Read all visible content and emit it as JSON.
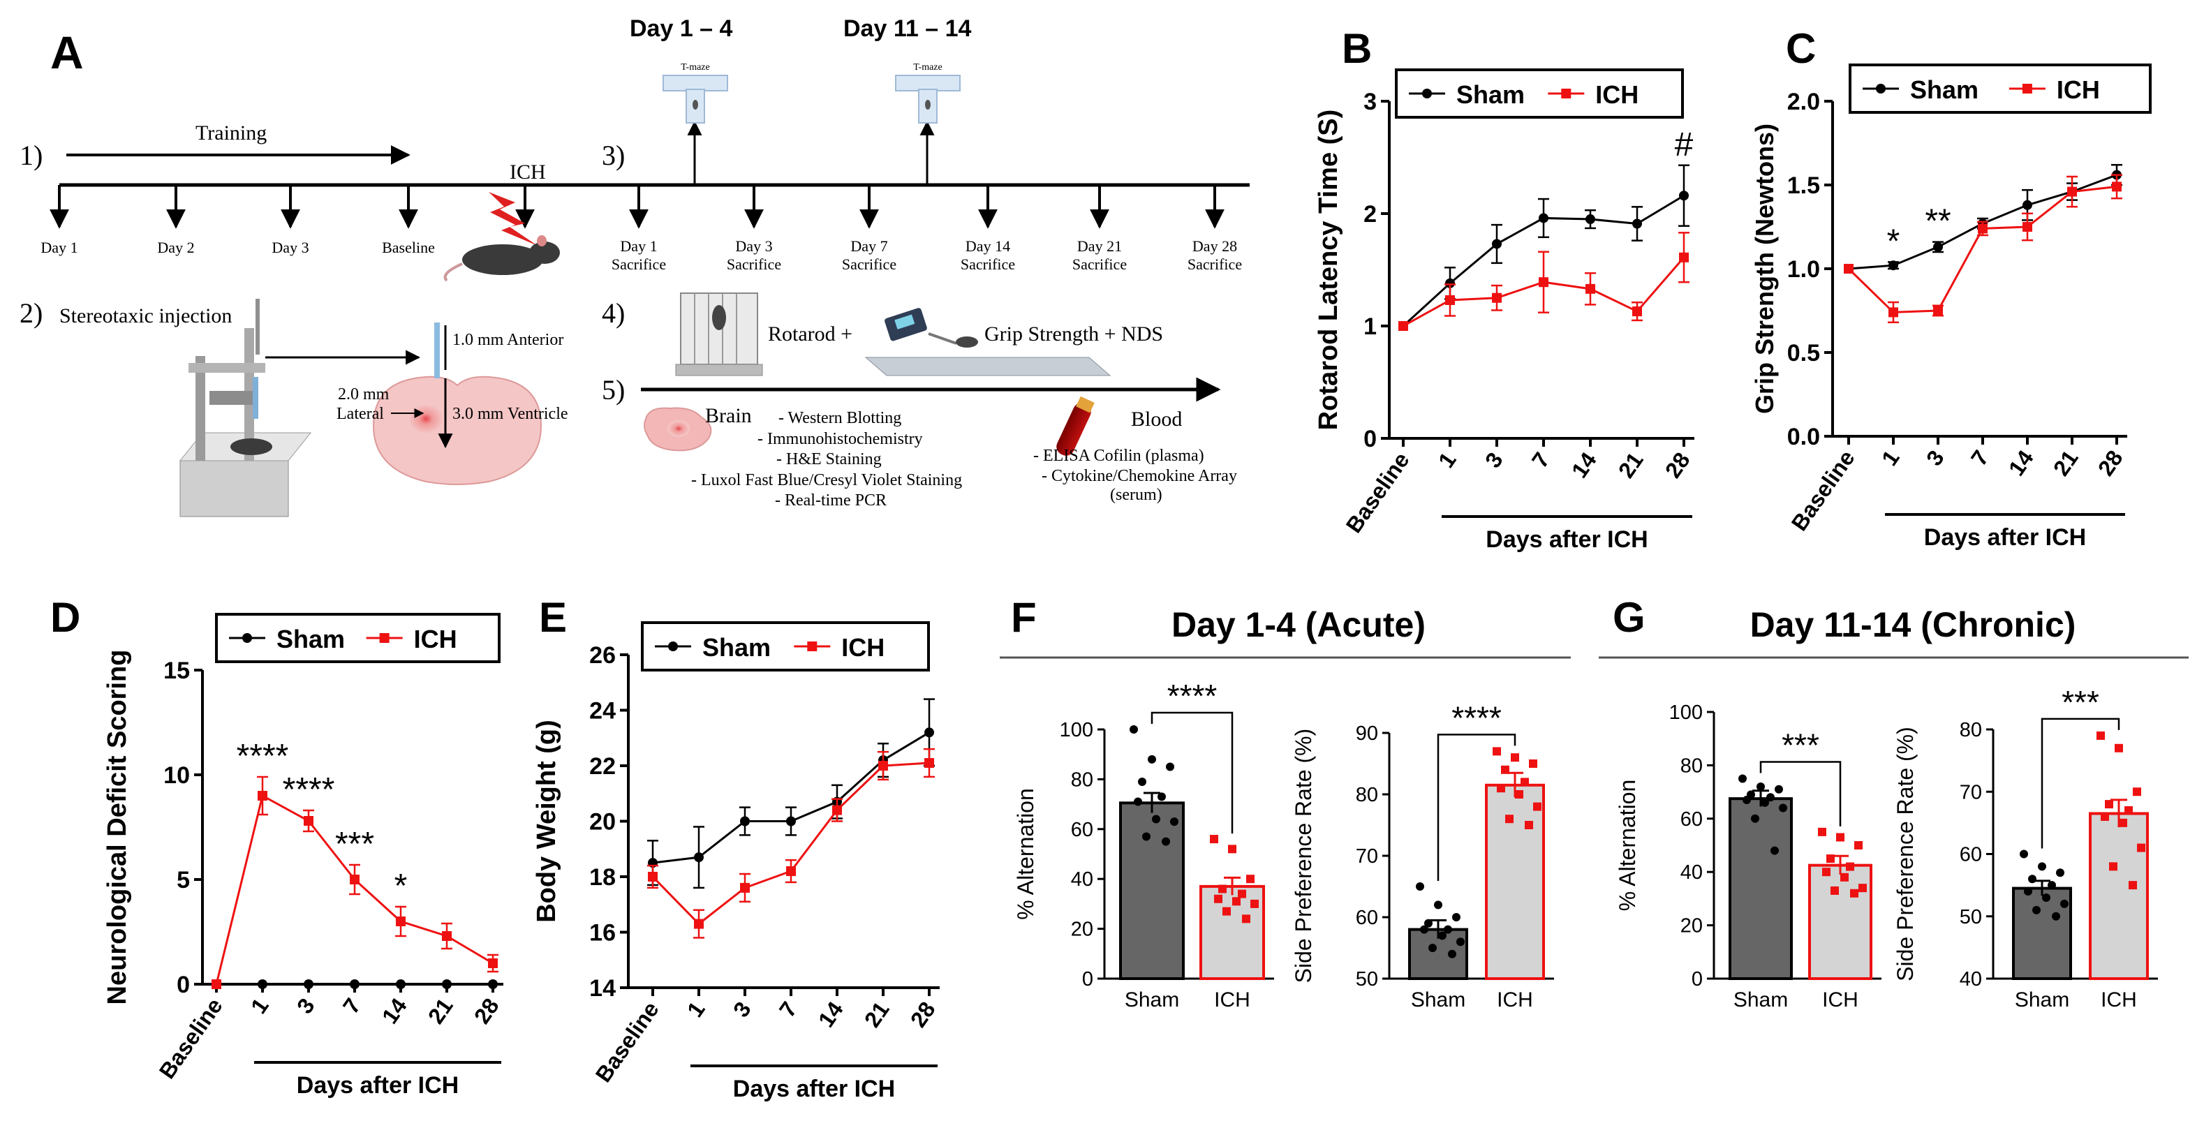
{
  "panelA": {
    "letter": "A",
    "step1": "1)",
    "training": "Training",
    "ich": "ICH",
    "step2": "2)",
    "stereotaxic": "Stereotaxic injection",
    "anterior": "1.0 mm Anterior",
    "lateral1": "2.0 mm",
    "lateral2": "Lateral",
    "ventricle": "3.0 mm Ventricle",
    "step3": "3)",
    "day14": "Day 1 – 4",
    "day1114": "Day 11 – 14",
    "tmaze": "T-maze",
    "step4": "4)",
    "rotarod": "Rotarod +",
    "grip": "Grip Strength + NDS",
    "step5": "5)",
    "brain": "Brain",
    "brain_items": [
      "- Western Blotting",
      "- Immunohistochemistry",
      "- H&E Staining",
      "- Luxol Fast Blue/Cresyl Violet Staining",
      "- Real-time PCR"
    ],
    "blood": "Blood",
    "blood_items": [
      "- ELISA Cofilin (plasma)",
      "- Cytokine/Chemokine Array",
      "(serum)"
    ],
    "timeline_top": [
      "Day 1",
      "Day 2",
      "Day 3",
      "Baseline"
    ],
    "timeline_after": [
      {
        "line1": "Day 1",
        "line2": "Sacrifice"
      },
      {
        "line1": "Day 3",
        "line2": "Sacrifice"
      },
      {
        "line1": "Day 7",
        "line2": "Sacrifice"
      },
      {
        "line1": "Day 14",
        "line2": "Sacrifice"
      },
      {
        "line1": "Day 21",
        "line2": "Sacrifice"
      },
      {
        "line1": "Day 28",
        "line2": "Sacrifice"
      }
    ]
  },
  "chart_data": [
    {
      "panel": "B",
      "type": "line",
      "ylabel": "Rotarod Latency Time (S)",
      "xlabel": "Days after ICH",
      "categories": [
        "Baseline",
        "1",
        "3",
        "7",
        "14",
        "21",
        "28"
      ],
      "ylim": [
        0,
        3
      ],
      "yticks": [
        "0",
        "1",
        "2",
        "3"
      ],
      "legend": [
        "Sham",
        "ICH"
      ],
      "series": [
        {
          "name": "Sham",
          "color": "#000000",
          "values": [
            1.0,
            1.38,
            1.73,
            1.96,
            1.95,
            1.91,
            2.16
          ],
          "errors": [
            0,
            0.14,
            0.17,
            0.17,
            0.08,
            0.15,
            0.27
          ]
        },
        {
          "name": "ICH",
          "color": "#ee1111",
          "values": [
            1.0,
            1.23,
            1.25,
            1.39,
            1.33,
            1.13,
            1.61
          ],
          "errors": [
            0,
            0.14,
            0.11,
            0.27,
            0.14,
            0.08,
            0.22
          ]
        }
      ],
      "annotations": [
        {
          "text": "#",
          "x": "28"
        }
      ]
    },
    {
      "panel": "C",
      "type": "line",
      "ylabel": "Grip Strength (Newtons)",
      "xlabel": "Days after ICH",
      "categories": [
        "Baseline",
        "1",
        "3",
        "7",
        "14",
        "21",
        "28"
      ],
      "ylim": [
        0,
        2
      ],
      "yticks": [
        "0.0",
        "0.5",
        "1.0",
        "1.5",
        "2.0"
      ],
      "legend": [
        "Sham",
        "ICH"
      ],
      "series": [
        {
          "name": "Sham",
          "color": "#000000",
          "values": [
            1.0,
            1.02,
            1.13,
            1.27,
            1.38,
            1.46,
            1.56
          ],
          "errors": [
            0,
            0.02,
            0.03,
            0.03,
            0.09,
            0.05,
            0.06
          ]
        },
        {
          "name": "ICH",
          "color": "#ee1111",
          "values": [
            1.0,
            0.74,
            0.75,
            1.24,
            1.25,
            1.46,
            1.49
          ],
          "errors": [
            0,
            0.06,
            0.03,
            0.04,
            0.08,
            0.09,
            0.07
          ]
        }
      ],
      "annotations": [
        {
          "text": "*",
          "x": "1"
        },
        {
          "text": "**",
          "x": "3"
        }
      ]
    },
    {
      "panel": "D",
      "type": "line",
      "ylabel": "Neurological Deficit Scoring",
      "xlabel": "Days after ICH",
      "categories": [
        "Baseline",
        "1",
        "3",
        "7",
        "14",
        "21",
        "28"
      ],
      "ylim": [
        0,
        15
      ],
      "yticks": [
        "0",
        "5",
        "10",
        "15"
      ],
      "legend": [
        "Sham",
        "ICH"
      ],
      "series": [
        {
          "name": "Sham",
          "color": "#000000",
          "values": [
            0,
            0,
            0,
            0,
            0,
            0,
            0
          ],
          "errors": [
            0,
            0,
            0,
            0,
            0,
            0,
            0
          ]
        },
        {
          "name": "ICH",
          "color": "#ee1111",
          "values": [
            0,
            9.0,
            7.8,
            5.0,
            3.0,
            2.3,
            1.0
          ],
          "errors": [
            0,
            0.9,
            0.5,
            0.7,
            0.7,
            0.6,
            0.4
          ]
        }
      ],
      "annotations": [
        {
          "text": "****",
          "x": "1"
        },
        {
          "text": "****",
          "x": "3"
        },
        {
          "text": "***",
          "x": "7"
        },
        {
          "text": "*",
          "x": "14"
        }
      ]
    },
    {
      "panel": "E",
      "type": "line",
      "ylabel": "Body Weight (g)",
      "xlabel": "Days after ICH",
      "categories": [
        "Baseline",
        "1",
        "3",
        "7",
        "14",
        "21",
        "28"
      ],
      "ylim": [
        14,
        26
      ],
      "yticks": [
        "14",
        "16",
        "18",
        "20",
        "22",
        "24",
        "26"
      ],
      "legend": [
        "Sham",
        "ICH"
      ],
      "series": [
        {
          "name": "Sham",
          "color": "#000000",
          "values": [
            18.5,
            18.7,
            20.0,
            20.0,
            20.7,
            22.2,
            23.2
          ],
          "errors": [
            0.8,
            1.1,
            0.5,
            0.5,
            0.6,
            0.6,
            1.2
          ]
        },
        {
          "name": "ICH",
          "color": "#ee1111",
          "values": [
            18.0,
            16.3,
            17.6,
            18.2,
            20.4,
            22.0,
            22.1
          ],
          "errors": [
            0.4,
            0.5,
            0.5,
            0.4,
            0.4,
            0.5,
            0.5
          ]
        }
      ],
      "annotations": []
    },
    {
      "panel": "F",
      "type": "bar",
      "header": "Day 1-4 (Acute)",
      "ylabel": "% Alternation",
      "categories": [
        "Sham",
        "ICH"
      ],
      "ylim": [
        0,
        100
      ],
      "yticks": [
        "0",
        "20",
        "40",
        "60",
        "80",
        "100"
      ],
      "values": [
        70.5,
        37.0
      ],
      "errors": [
        4.0,
        3.5
      ],
      "points": [
        [
          100,
          88,
          85,
          79,
          73,
          71,
          64,
          63,
          57,
          55
        ],
        [
          56,
          52,
          40,
          36,
          34,
          32,
          31,
          30,
          27,
          24
        ]
      ],
      "significance": "****"
    },
    {
      "panel": "F",
      "type": "bar",
      "header": "",
      "ylabel": "Side Preference Rate (%)",
      "categories": [
        "Sham",
        "ICH"
      ],
      "ylim": [
        50,
        90
      ],
      "yticks": [
        "50",
        "60",
        "70",
        "80",
        "90"
      ],
      "values": [
        58.0,
        81.5
      ],
      "errors": [
        1.5,
        2.0
      ],
      "points": [
        [
          65,
          62,
          60,
          59,
          58,
          58,
          57,
          56,
          55,
          54
        ],
        [
          87,
          86,
          85,
          84,
          82,
          81,
          80,
          78,
          76,
          75
        ]
      ],
      "significance": "****"
    },
    {
      "panel": "G",
      "type": "bar",
      "header": "Day 11-14 (Chronic)",
      "ylabel": "% Alternation",
      "categories": [
        "Sham",
        "ICH"
      ],
      "ylim": [
        0,
        100
      ],
      "yticks": [
        "0",
        "20",
        "40",
        "60",
        "80",
        "100"
      ],
      "values": [
        67.5,
        42.5
      ],
      "errors": [
        3.0,
        3.5
      ],
      "points": [
        [
          75,
          72,
          71,
          69,
          68,
          67,
          66,
          64,
          60,
          48
        ],
        [
          55,
          53,
          50,
          45,
          42,
          40,
          38,
          34,
          33,
          32
        ]
      ],
      "significance": "***"
    },
    {
      "panel": "G",
      "type": "bar",
      "header": "",
      "ylabel": "Side Preference Rate (%)",
      "categories": [
        "Sham",
        "ICH"
      ],
      "ylim": [
        40,
        80
      ],
      "yticks": [
        "40",
        "50",
        "60",
        "70",
        "80"
      ],
      "values": [
        54.5,
        66.5
      ],
      "errors": [
        1.2,
        2.2
      ],
      "points": [
        [
          60,
          58,
          57,
          56,
          55,
          54,
          53,
          52,
          51,
          50
        ],
        [
          79,
          77,
          70,
          68,
          67,
          66,
          65,
          61,
          58,
          55
        ]
      ],
      "significance": "***"
    }
  ]
}
